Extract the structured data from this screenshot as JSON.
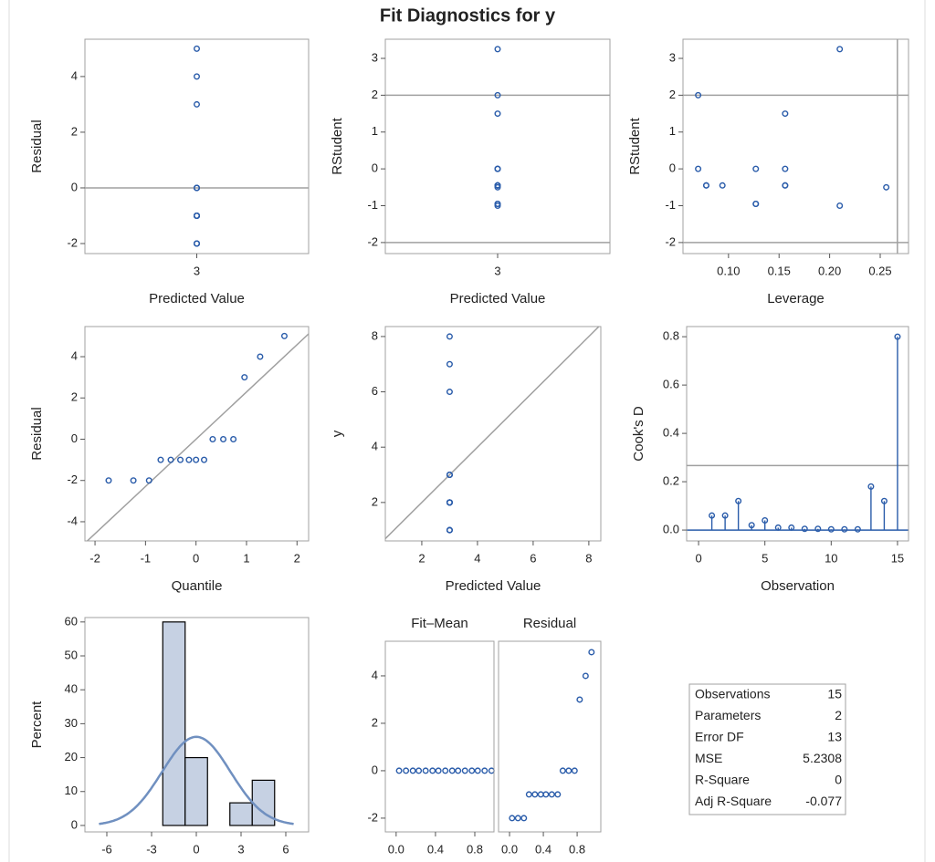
{
  "title": "Fit Diagnostics for y",
  "chart_data": [
    {
      "type": "scatter",
      "x_label": "Predicted Value",
      "y_label": "Residual",
      "color": "#2a5caa",
      "xlim": [
        2,
        4
      ],
      "xticks": [
        3
      ],
      "ylim": [
        -2.36,
        5.34
      ],
      "yticks": [
        -2,
        0,
        2,
        4
      ],
      "ref_lines": [
        {
          "axis": "y",
          "value": 0
        }
      ],
      "x": [
        3,
        3,
        3,
        3,
        3,
        3,
        3,
        3,
        3,
        3,
        3,
        3,
        3,
        3,
        3
      ],
      "y": [
        5,
        4,
        3,
        0,
        0,
        0,
        -1,
        -1,
        -1,
        -1,
        -1,
        -1,
        -2,
        -2,
        -2
      ]
    },
    {
      "type": "scatter",
      "x_label": "Predicted Value",
      "y_label": "RStudent",
      "color": "#2a5caa",
      "xlim": [
        2,
        4
      ],
      "xticks": [
        3
      ],
      "ylim": [
        -2.3,
        3.52
      ],
      "yticks": [
        -2,
        -1,
        0,
        1,
        2,
        3
      ],
      "ref_lines": [
        {
          "axis": "y",
          "value": 2
        },
        {
          "axis": "y",
          "value": -2
        }
      ],
      "x": [
        3,
        3,
        3,
        3,
        3,
        3,
        3,
        3,
        3,
        3,
        3,
        3,
        3,
        3,
        3
      ],
      "y": [
        2.0,
        0.0,
        -0.45,
        -0.45,
        -0.45,
        0.0,
        -0.95,
        -0.95,
        1.5,
        0.0,
        -0.45,
        -0.45,
        3.25,
        -1.0,
        -0.5
      ]
    },
    {
      "type": "scatter",
      "x_label": "Leverage",
      "y_label": "RStudent",
      "color": "#2a5caa",
      "xlim": [
        0.055,
        0.278
      ],
      "xticks": [
        {
          "value": 0.1,
          "label": "0.10"
        },
        0.15,
        {
          "value": 0.2,
          "label": "0.20"
        },
        0.25
      ],
      "ylim": [
        -2.3,
        3.52
      ],
      "yticks": [
        -2,
        -1,
        0,
        1,
        2,
        3
      ],
      "ref_lines": [
        {
          "axis": "y",
          "value": 2
        },
        {
          "axis": "y",
          "value": -2
        },
        {
          "axis": "x",
          "value": 0.267
        }
      ],
      "x": [
        0.07,
        0.07,
        0.078,
        0.078,
        0.094,
        0.127,
        0.127,
        0.127,
        0.156,
        0.156,
        0.156,
        0.156,
        0.21,
        0.21,
        0.256
      ],
      "y": [
        2.0,
        0.0,
        -0.45,
        -0.45,
        -0.45,
        0.0,
        -0.95,
        -0.95,
        1.5,
        0.0,
        -0.45,
        -0.45,
        3.25,
        -1.0,
        -0.5
      ]
    },
    {
      "type": "scatter",
      "x_label": "Quantile",
      "y_label": "Residual",
      "color": "#2a5caa",
      "xlim": [
        -2.2,
        2.23
      ],
      "xticks": [
        -2,
        -1,
        0,
        1,
        2
      ],
      "ylim": [
        -4.93,
        5.46
      ],
      "yticks": [
        -4,
        -2,
        0,
        2,
        4
      ],
      "ref_line_slope": 2.29,
      "x": [
        -1.73,
        -1.24,
        -0.93,
        -0.7,
        -0.5,
        -0.31,
        -0.14,
        0,
        0.16,
        0.33,
        0.54,
        0.74,
        0.96,
        1.27,
        1.75
      ],
      "y": [
        -2,
        -2,
        -2,
        -1,
        -1,
        -1,
        -1,
        -1,
        -1,
        0,
        0,
        0,
        3,
        4,
        5
      ]
    },
    {
      "type": "scatter",
      "x_label": "Predicted Value",
      "y_label": "y",
      "color": "#2a5caa",
      "xlim": [
        0.69,
        8.43
      ],
      "xticks": [
        2,
        4,
        6,
        8
      ],
      "ylim": [
        0.61,
        8.36
      ],
      "yticks": [
        2,
        4,
        6,
        8
      ],
      "ref_line_slope": 1,
      "x": [
        3,
        3,
        3,
        3,
        3,
        3,
        3,
        3,
        3,
        3,
        3,
        3,
        3,
        3,
        3
      ],
      "y": [
        8,
        7,
        6,
        3,
        3,
        3,
        2,
        2,
        2,
        2,
        2,
        2,
        1,
        1,
        1
      ]
    },
    {
      "type": "needle",
      "x_label": "Observation",
      "y_label": "Cook's D",
      "color": "#2a5caa",
      "xlim": [
        -0.9,
        15.83
      ],
      "xticks": [
        0,
        5,
        10,
        15
      ],
      "ylim": [
        -0.045,
        0.842
      ],
      "yticks": [
        {
          "value": 0,
          "label": "0.0"
        },
        {
          "value": 0.2,
          "label": "0.2"
        },
        {
          "value": 0.4,
          "label": "0.4"
        },
        {
          "value": 0.6,
          "label": "0.6"
        },
        {
          "value": 0.8,
          "label": "0.8"
        }
      ],
      "ref_lines": [
        {
          "axis": "y",
          "value": 0.267
        }
      ],
      "x": [
        1,
        2,
        3,
        4,
        5,
        6,
        7,
        8,
        9,
        10,
        11,
        12,
        13,
        14,
        15
      ],
      "y": [
        0.06,
        0.06,
        0.12,
        0.02,
        0.04,
        0.01,
        0.01,
        0.005,
        0.005,
        0.003,
        0.003,
        0.003,
        0.18,
        0.12,
        0.8
      ]
    },
    {
      "type": "histogram",
      "y_label": "Percent",
      "color": "#c6d1e3",
      "xlim": [
        -7.47,
        7.53
      ],
      "xticks": [
        -6,
        -3,
        0,
        3,
        6
      ],
      "ylim": [
        -1.9,
        61.3
      ],
      "yticks": [
        0,
        10,
        20,
        30,
        40,
        50,
        60
      ],
      "bins": [
        -2.25,
        -0.75,
        0.75,
        2.25,
        3.75,
        5.25
      ],
      "values": [
        60,
        20,
        0,
        6.67,
        13.33
      ],
      "normal_curve": {
        "mean": 0,
        "sd": 2.29,
        "color": "#7090c0"
      }
    },
    {
      "type": "spread",
      "color": "#2a5caa",
      "ylim": [
        -2.58,
        5.46
      ],
      "yticks": [
        -2,
        0,
        2,
        4
      ],
      "panels": [
        {
          "label": "Fit–Mean",
          "xlim": [
            -0.11,
            0.995
          ],
          "xticks": [
            {
              "value": 0,
              "label": "0.0"
            },
            0.4,
            0.8
          ],
          "x": [
            0.03,
            0.1,
            0.17,
            0.23,
            0.3,
            0.37,
            0.43,
            0.5,
            0.57,
            0.63,
            0.7,
            0.77,
            0.83,
            0.9,
            0.97
          ],
          "y": [
            0,
            0,
            0,
            0,
            0,
            0,
            0,
            0,
            0,
            0,
            0,
            0,
            0,
            0,
            0
          ]
        },
        {
          "label": "Residual",
          "xlim": [
            -0.13,
            1.08
          ],
          "xticks": [
            {
              "value": 0,
              "label": "0.0"
            },
            0.4,
            0.8
          ],
          "x": [
            0.03,
            0.1,
            0.17,
            0.23,
            0.3,
            0.37,
            0.43,
            0.5,
            0.57,
            0.63,
            0.7,
            0.77,
            0.83,
            0.9,
            0.97
          ],
          "y": [
            -2,
            -2,
            -2,
            -1,
            -1,
            -1,
            -1,
            -1,
            -1,
            0,
            0,
            0,
            3,
            4,
            5
          ]
        }
      ]
    },
    {
      "type": "table",
      "rows": [
        [
          "Observations",
          "15"
        ],
        [
          "Parameters",
          "2"
        ],
        [
          "Error DF",
          "13"
        ],
        [
          "MSE",
          "5.2308"
        ],
        [
          "R-Square",
          "0"
        ],
        [
          "Adj R-Square",
          "-0.077"
        ]
      ]
    }
  ]
}
